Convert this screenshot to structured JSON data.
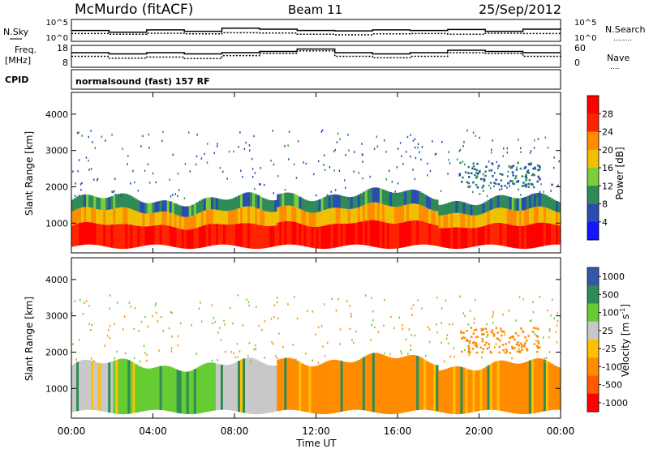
{
  "header": {
    "station": "McMurdo (fitACF)",
    "beam": "Beam 11",
    "date": "25/Sep/2012"
  },
  "noise_panel": {
    "left_label": "N.Sky",
    "right_label": "N.Search",
    "right_marker": "........",
    "left_ticks": [
      "10^5",
      "10^0"
    ],
    "right_ticks": [
      "10^5",
      "10^0"
    ]
  },
  "freq_panel": {
    "left_label_1": "Freq.",
    "left_label_2": "[MHz]",
    "right_label": "Nave",
    "right_marker": "....",
    "left_ticks": [
      "18",
      "8"
    ],
    "right_ticks": [
      "60",
      "0"
    ]
  },
  "cpid": {
    "label": "CPID",
    "text": "normalsound (fast) 157 RF"
  },
  "axes": {
    "ylabel": "Slant Range [km]",
    "xlabel": "Time UT",
    "y_ticks": [
      "1000",
      "2000",
      "3000",
      "4000"
    ],
    "x_ticks": [
      "00:00",
      "04:00",
      "08:00",
      "12:00",
      "16:00",
      "20:00",
      "00:00"
    ]
  },
  "colors": {
    "power": [
      "#1414ff",
      "#2a4cb0",
      "#2e8b57",
      "#7ccd3c",
      "#f0c000",
      "#ff8c00",
      "#ff2400",
      "#ff0000"
    ],
    "velocity": [
      "#ff0000",
      "#ff5a00",
      "#ff8c00",
      "#ffc000",
      "#c8c8c8",
      "#66cc33",
      "#2e8b57",
      "#3355aa"
    ]
  },
  "chart_data": [
    {
      "type": "heatmap",
      "title": "",
      "quantity": "Power",
      "colorbar_label": "Power [dB]",
      "colorbar_ticks": [
        "4",
        "8",
        "12",
        "16",
        "20",
        "24",
        "28"
      ],
      "xlabel": "",
      "ylabel": "Slant Range [km]",
      "xlim": [
        0,
        24
      ],
      "ylim": [
        180,
        4600
      ],
      "x_ticks_hours": [
        0,
        4,
        8,
        12,
        16,
        20,
        24
      ],
      "scatter_band_km": [
        2000,
        2700
      ],
      "scatter_band_hours": [
        19,
        23
      ],
      "main_echo_layer_km": [
        350,
        1650
      ],
      "main_echo_peak_km": 800,
      "max_dB": 30
    },
    {
      "type": "heatmap",
      "title": "",
      "quantity": "Velocity",
      "colorbar_label": "Velocity [m s^-1]",
      "colorbar_ticks": [
        "1000",
        "500",
        "100",
        "25",
        "-25",
        "-100",
        "-500",
        "-1000"
      ],
      "xlabel": "Time UT",
      "ylabel": "Slant Range [km]",
      "xlim": [
        0,
        24
      ],
      "ylim": [
        180,
        4600
      ],
      "x_ticks_hours": [
        0,
        4,
        8,
        12,
        16,
        20,
        24
      ],
      "dominant_velocity_by_hours": [
        {
          "from": 0,
          "to": 2,
          "class": "25 to -25"
        },
        {
          "from": 2,
          "to": 7,
          "class": "100 to 25"
        },
        {
          "from": 7,
          "to": 10,
          "class": "25 to -25"
        },
        {
          "from": 10,
          "to": 19,
          "class": "-25 to -100"
        },
        {
          "from": 19,
          "to": 24,
          "class": "-25 to -100"
        }
      ]
    },
    {
      "type": "line",
      "title": "",
      "quantity": "Noise",
      "series": [
        {
          "name": "N.Sky",
          "values": [
            300,
            120,
            400,
            200,
            1000,
            600,
            300,
            250,
            400,
            300,
            500,
            200,
            600,
            800
          ]
        },
        {
          "name": "N.Search",
          "values": [
            60,
            40,
            70,
            50,
            90,
            80,
            40,
            30,
            50,
            60,
            40,
            70,
            60,
            50
          ]
        }
      ]
    },
    {
      "type": "line",
      "title": "",
      "quantity": "Frequency",
      "series": [
        {
          "name": "Freq.",
          "values": [
            12,
            11,
            12,
            11,
            12,
            13,
            15,
            12,
            11,
            12,
            14,
            13,
            12,
            12
          ]
        },
        {
          "name": "Nave",
          "values": [
            30,
            25,
            28,
            24,
            32,
            38,
            45,
            30,
            26,
            30,
            40,
            38,
            30,
            28
          ]
        }
      ]
    }
  ]
}
